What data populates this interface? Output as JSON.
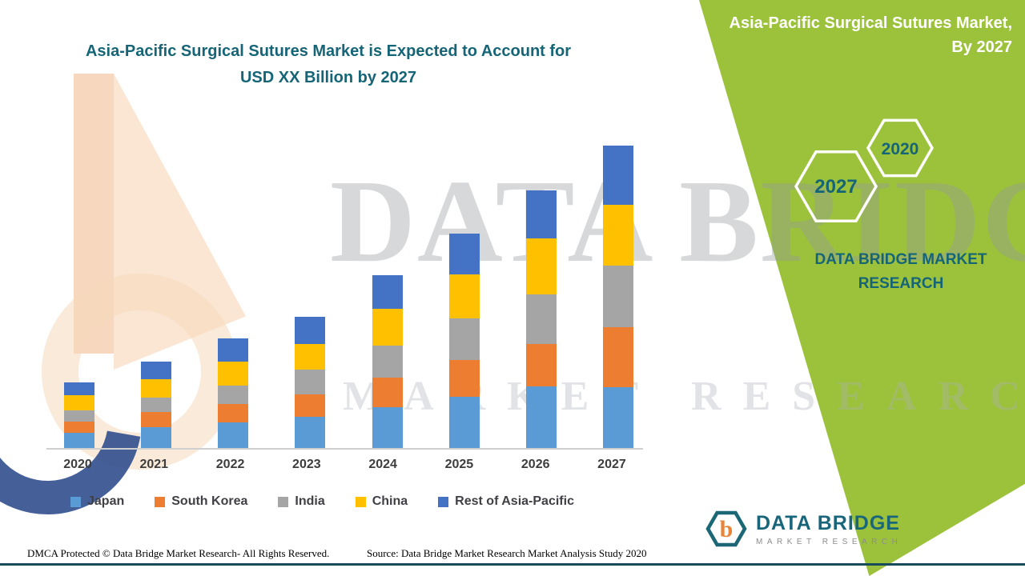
{
  "header": {
    "left_title_line1": "Asia-Pacific Surgical Sutures Market is Expected to Account for",
    "left_title_line2": "USD XX Billion by 2027",
    "right_title_line1": "Asia-Pacific Surgical Sutures Market,",
    "right_title_line2": "By 2027"
  },
  "green_panel": {
    "hexagons": [
      {
        "label": "2027"
      },
      {
        "label": "2020"
      }
    ],
    "brand_line1": "DATA BRIDGE MARKET",
    "brand_line2": "RESEARCH"
  },
  "watermark": {
    "big": "DATA BRIDGE",
    "sub": "MARKET RESEARCH"
  },
  "logo": {
    "title": "DATA BRIDGE",
    "subtitle": "MARKET RESEARCH",
    "icon": "hexagon-b-logo"
  },
  "footer": {
    "dmca": "DMCA Protected © Data Bridge Market Research- All Rights Reserved.",
    "source": "Source: Data Bridge Market Research Market Analysis Study 2020"
  },
  "colors": {
    "green_ribbon": "#9CC23C",
    "teal_brand": "#156577",
    "footer_rule": "#174A5A"
  },
  "chart_data": {
    "type": "bar",
    "stacked": true,
    "title": "Asia-Pacific Surgical Sutures Market is Expected to Account for USD XX Billion by 2027",
    "xlabel": "",
    "ylabel": "",
    "y_axis_visible": false,
    "grid": false,
    "legend_position": "bottom",
    "ylim": [
      0,
      10
    ],
    "units": "relative index (actual values masked as USD XX Billion)",
    "categories": [
      "2020",
      "2021",
      "2022",
      "2023",
      "2024",
      "2025",
      "2026",
      "2027"
    ],
    "series": [
      {
        "name": "Japan",
        "color": "#5B9BD5",
        "values": [
          0.48,
          0.65,
          0.8,
          0.98,
          1.28,
          1.6,
          1.93,
          1.9
        ]
      },
      {
        "name": "South Korea",
        "color": "#ED7D31",
        "values": [
          0.35,
          0.48,
          0.58,
          0.7,
          0.93,
          1.15,
          1.33,
          1.88
        ]
      },
      {
        "name": "India",
        "color": "#A5A5A5",
        "values": [
          0.35,
          0.45,
          0.58,
          0.78,
          1.0,
          1.3,
          1.55,
          1.93
        ]
      },
      {
        "name": "China",
        "color": "#FFC000",
        "values": [
          0.48,
          0.58,
          0.73,
          0.8,
          1.13,
          1.38,
          1.75,
          1.88
        ]
      },
      {
        "name": "Rest of Asia-Pacific",
        "color": "#4472C4",
        "values": [
          0.4,
          0.55,
          0.73,
          0.85,
          1.05,
          1.28,
          1.5,
          1.85
        ]
      }
    ]
  }
}
